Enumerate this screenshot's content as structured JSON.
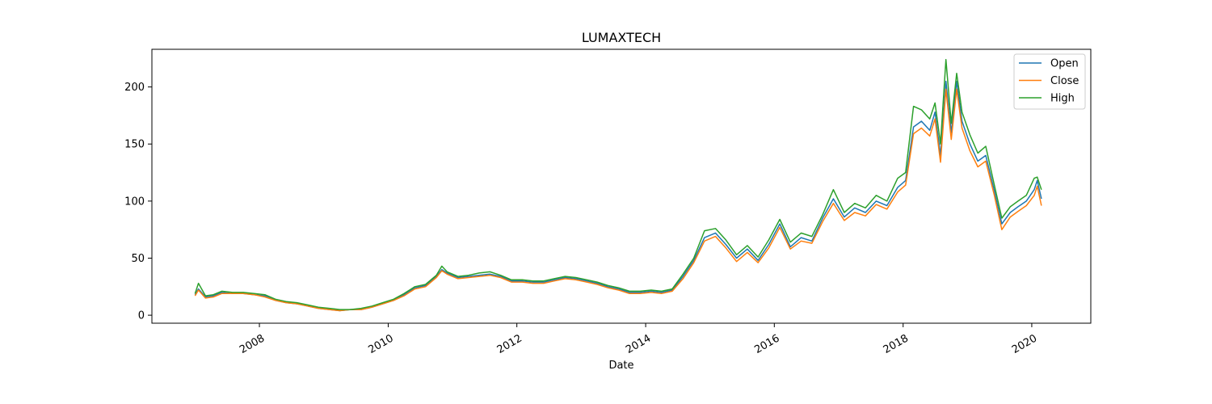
{
  "chart_data": {
    "type": "line",
    "title": "LUMAXTECH",
    "xlabel": "Date",
    "ylabel": "",
    "x_axis": "date",
    "xlim": [
      "2006-05-01",
      "2020-12-01"
    ],
    "ylim": [
      -7,
      233
    ],
    "x_ticks": [
      {
        "date": "2008-01-01",
        "label": "2008"
      },
      {
        "date": "2010-01-01",
        "label": "2010"
      },
      {
        "date": "2012-01-01",
        "label": "2012"
      },
      {
        "date": "2014-01-01",
        "label": "2014"
      },
      {
        "date": "2016-01-01",
        "label": "2016"
      },
      {
        "date": "2018-01-01",
        "label": "2018"
      },
      {
        "date": "2020-01-01",
        "label": "2020"
      }
    ],
    "y_ticks": [
      {
        "value": 0,
        "label": "0"
      },
      {
        "value": 50,
        "label": "50"
      },
      {
        "value": 100,
        "label": "100"
      },
      {
        "value": 150,
        "label": "150"
      },
      {
        "value": 200,
        "label": "200"
      }
    ],
    "grid": false,
    "legend": "top-right",
    "x": [
      "2007-01-01",
      "2007-01-20",
      "2007-03-01",
      "2007-04-15",
      "2007-06-01",
      "2007-08-01",
      "2007-10-01",
      "2007-12-01",
      "2008-02-01",
      "2008-04-01",
      "2008-06-01",
      "2008-08-01",
      "2008-10-01",
      "2008-12-01",
      "2009-02-01",
      "2009-04-01",
      "2009-06-01",
      "2009-08-01",
      "2009-10-01",
      "2009-12-01",
      "2010-02-01",
      "2010-04-01",
      "2010-06-01",
      "2010-08-01",
      "2010-10-01",
      "2010-11-01",
      "2010-12-01",
      "2011-02-01",
      "2011-04-01",
      "2011-06-01",
      "2011-08-01",
      "2011-10-01",
      "2011-12-01",
      "2012-02-01",
      "2012-04-01",
      "2012-06-01",
      "2012-08-01",
      "2012-10-01",
      "2012-12-01",
      "2013-02-01",
      "2013-04-01",
      "2013-06-01",
      "2013-08-01",
      "2013-10-01",
      "2013-12-01",
      "2014-02-01",
      "2014-04-01",
      "2014-06-01",
      "2014-08-01",
      "2014-10-01",
      "2014-12-01",
      "2015-02-01",
      "2015-04-01",
      "2015-06-01",
      "2015-08-01",
      "2015-10-01",
      "2015-12-01",
      "2016-02-01",
      "2016-04-01",
      "2016-06-01",
      "2016-08-01",
      "2016-10-01",
      "2016-12-01",
      "2017-02-01",
      "2017-04-01",
      "2017-06-01",
      "2017-08-01",
      "2017-10-01",
      "2017-12-01",
      "2018-01-15",
      "2018-03-01",
      "2018-04-15",
      "2018-06-01",
      "2018-07-01",
      "2018-08-01",
      "2018-09-01",
      "2018-10-01",
      "2018-11-01",
      "2018-12-01",
      "2019-01-15",
      "2019-03-01",
      "2019-04-15",
      "2019-06-01",
      "2019-07-15",
      "2019-09-01",
      "2019-10-15",
      "2019-12-01",
      "2020-01-15",
      "2020-02-01",
      "2020-02-25"
    ],
    "series": [
      {
        "name": "Open",
        "color": "#1f77b4",
        "values": [
          18,
          23,
          16,
          17,
          20,
          19,
          19,
          18,
          17,
          13,
          11,
          10,
          8,
          6,
          5,
          4,
          5,
          5,
          7,
          10,
          13,
          18,
          24,
          26,
          34,
          40,
          37,
          33,
          34,
          35,
          36,
          34,
          30,
          30,
          29,
          29,
          31,
          33,
          32,
          30,
          28,
          25,
          23,
          20,
          20,
          21,
          20,
          22,
          34,
          48,
          68,
          72,
          62,
          50,
          58,
          48,
          62,
          80,
          60,
          68,
          65,
          85,
          102,
          86,
          94,
          90,
          100,
          96,
          112,
          118,
          165,
          170,
          162,
          178,
          140,
          205,
          160,
          205,
          170,
          150,
          135,
          140,
          110,
          80,
          90,
          95,
          100,
          110,
          118,
          102
        ]
      },
      {
        "name": "Close",
        "color": "#ff7f0e",
        "values": [
          17,
          22,
          15,
          16,
          19,
          19,
          19,
          18,
          16,
          13,
          11,
          10,
          8,
          6,
          5,
          4,
          5,
          5,
          7,
          10,
          13,
          17,
          23,
          25,
          33,
          39,
          36,
          32,
          33,
          34,
          35,
          33,
          29,
          29,
          28,
          28,
          30,
          32,
          31,
          29,
          27,
          24,
          22,
          19,
          19,
          20,
          19,
          21,
          32,
          46,
          65,
          69,
          59,
          47,
          55,
          46,
          59,
          77,
          58,
          65,
          63,
          82,
          98,
          83,
          90,
          87,
          97,
          93,
          108,
          114,
          159,
          164,
          157,
          172,
          134,
          198,
          154,
          198,
          164,
          144,
          130,
          135,
          106,
          75,
          86,
          91,
          96,
          105,
          113,
          96
        ]
      },
      {
        "name": "High",
        "color": "#2ca02c",
        "values": [
          19,
          28,
          17,
          18,
          21,
          20,
          20,
          19,
          18,
          14,
          12,
          11,
          9,
          7,
          6,
          5,
          5,
          6,
          8,
          11,
          14,
          19,
          25,
          27,
          35,
          43,
          38,
          34,
          35,
          37,
          38,
          35,
          31,
          31,
          30,
          30,
          32,
          34,
          33,
          31,
          29,
          26,
          24,
          21,
          21,
          22,
          21,
          23,
          36,
          50,
          74,
          76,
          66,
          53,
          61,
          51,
          66,
          84,
          64,
          72,
          69,
          88,
          110,
          90,
          98,
          94,
          105,
          100,
          120,
          125,
          183,
          180,
          172,
          186,
          150,
          224,
          168,
          212,
          178,
          158,
          142,
          148,
          115,
          85,
          95,
          100,
          105,
          120,
          121,
          110
        ]
      }
    ]
  }
}
